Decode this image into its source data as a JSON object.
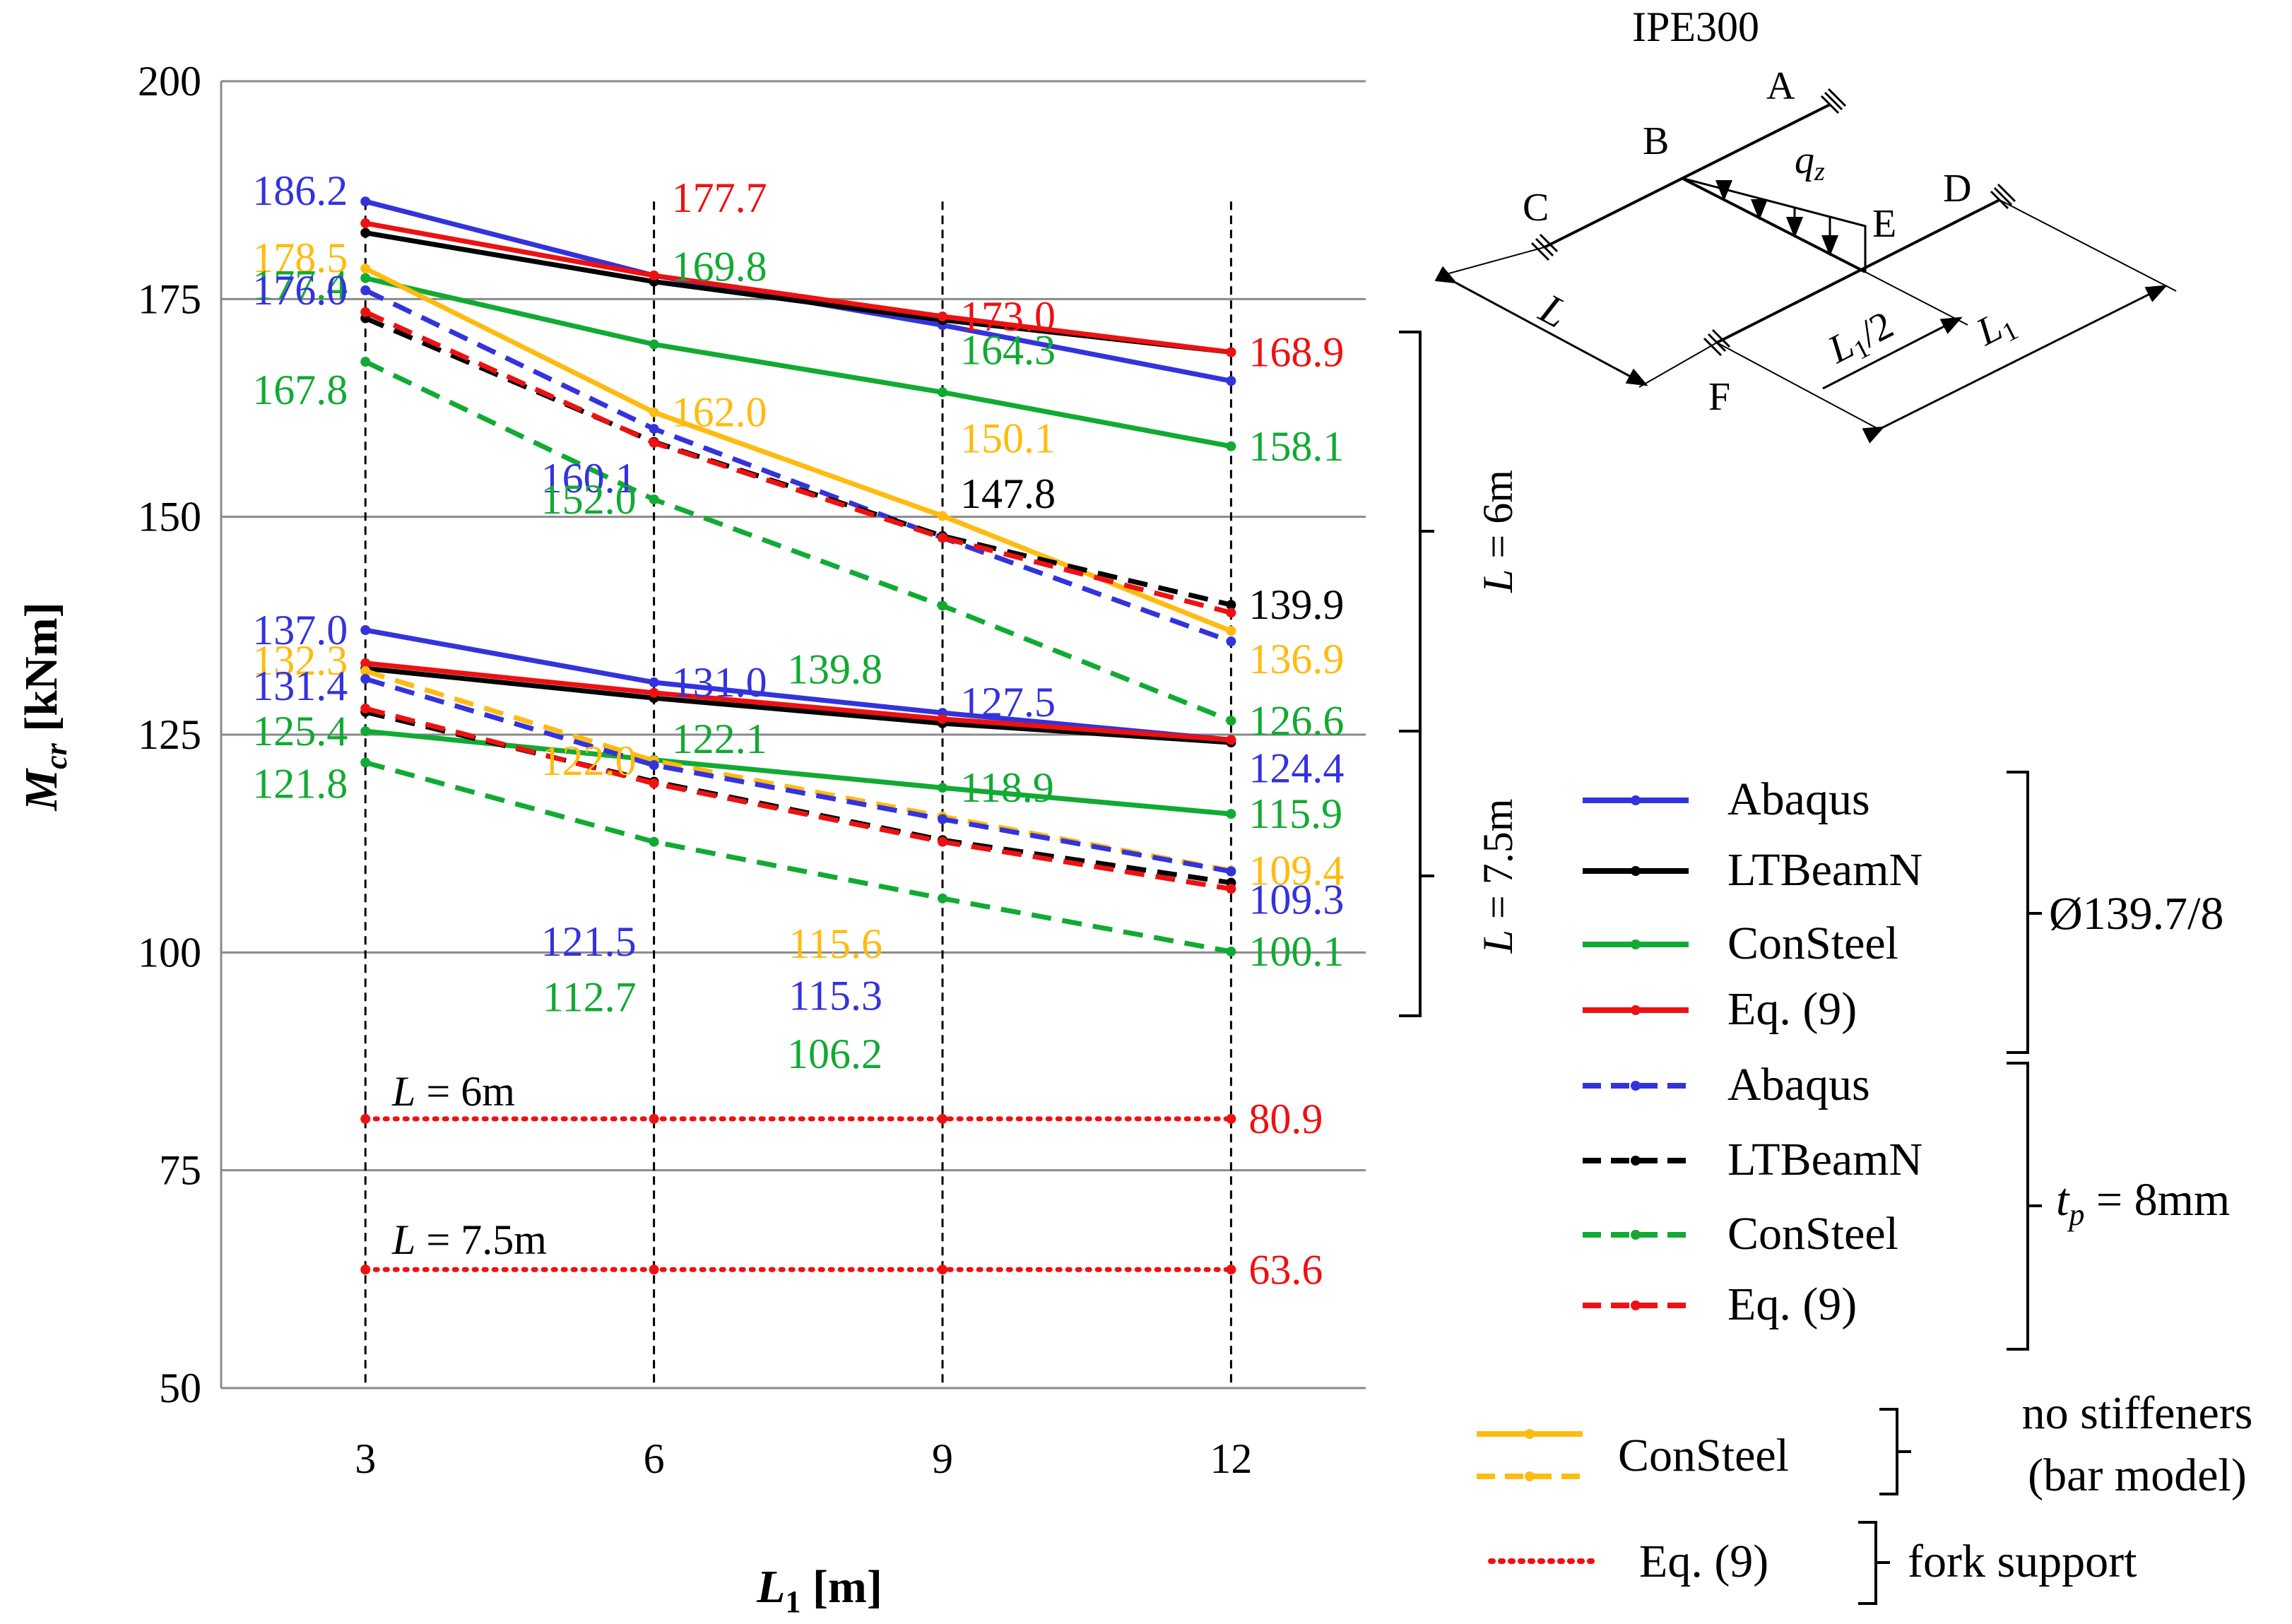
{
  "chart_data": {
    "type": "line",
    "title": "",
    "xlabel": "L",
    "xlabel_sub": "1",
    "xlabel_unit": " [m]",
    "ylabel": "M",
    "ylabel_sub": "cr",
    "ylabel_unit": " [kNm]",
    "x": [
      3,
      6,
      9,
      12
    ],
    "xticks": [
      "3",
      "6",
      "9",
      "12"
    ],
    "ylim": [
      50,
      200
    ],
    "yticks": [
      50,
      75,
      100,
      125,
      150,
      175,
      200
    ],
    "grid": "horizontal",
    "colors": {
      "abaqus": "#3333dd",
      "ltbeam": "#000000",
      "consteel": "#11aa33",
      "eq9": "#ee1111",
      "consteel_bar": "#ffbb11"
    },
    "series": [
      {
        "name": "Abaqus (Ø139.7/8, L = 6m)",
        "color": "#3333dd",
        "style": "solid",
        "values": [
          186.2,
          177.7,
          172.0,
          165.6
        ]
      },
      {
        "name": "LTBeamN (Ø139.7/8, L = 6m)",
        "color": "#000000",
        "style": "solid",
        "values": [
          182.6,
          177.0,
          172.6,
          168.9
        ]
      },
      {
        "name": "ConSteel (Ø139.7/8, L = 6m)",
        "color": "#11aa33",
        "style": "solid",
        "values": [
          177.4,
          169.8,
          164.3,
          158.1
        ]
      },
      {
        "name": "Eq. (9) (Ø139.7/8, L = 6m)",
        "color": "#ee1111",
        "style": "solid",
        "values": [
          183.7,
          177.7,
          173.0,
          168.9
        ]
      },
      {
        "name": "ConSteel bar model (L = 6m)",
        "color": "#ffbb11",
        "style": "solid",
        "values": [
          178.5,
          162.0,
          150.1,
          136.9
        ]
      },
      {
        "name": "Abaqus (tp = 8mm, L = 6m)",
        "color": "#3333dd",
        "style": "dashed",
        "values": [
          176.0,
          160.1,
          147.6,
          135.7
        ]
      },
      {
        "name": "LTBeamN (tp = 8mm, L = 6m)",
        "color": "#000000",
        "style": "dashed",
        "values": [
          172.8,
          158.6,
          147.8,
          139.9
        ]
      },
      {
        "name": "ConSteel (tp = 8mm, L = 6m)",
        "color": "#11aa33",
        "style": "dashed",
        "values": [
          167.8,
          152.0,
          139.8,
          126.6
        ]
      },
      {
        "name": "Eq. (9) (tp = 8mm, L = 6m)",
        "color": "#ee1111",
        "style": "dashed",
        "values": [
          173.5,
          158.5,
          147.6,
          139.0
        ]
      },
      {
        "name": "Abaqus (Ø139.7/8, L = 7.5m)",
        "color": "#3333dd",
        "style": "solid",
        "values": [
          137.0,
          131.0,
          127.5,
          124.4
        ]
      },
      {
        "name": "LTBeamN (Ø139.7/8, L = 7.5m)",
        "color": "#000000",
        "style": "solid",
        "values": [
          132.6,
          129.2,
          126.3,
          124.1
        ]
      },
      {
        "name": "ConSteel (Ø139.7/8, L = 7.5m)",
        "color": "#11aa33",
        "style": "solid",
        "values": [
          125.4,
          122.1,
          118.9,
          115.9
        ]
      },
      {
        "name": "Eq. (9) (Ø139.7/8, L = 7.5m)",
        "color": "#ee1111",
        "style": "solid",
        "values": [
          133.2,
          129.8,
          126.8,
          124.4
        ]
      },
      {
        "name": "ConSteel bar model (L = 7.5m)",
        "color": "#ffbb11",
        "style": "dashed",
        "values": [
          132.3,
          122.0,
          115.6,
          109.4
        ]
      },
      {
        "name": "Abaqus (tp = 8mm, L = 7.5m)",
        "color": "#3333dd",
        "style": "dashed",
        "values": [
          131.4,
          121.5,
          115.3,
          109.3
        ]
      },
      {
        "name": "LTBeamN (tp = 8mm, L = 7.5m)",
        "color": "#000000",
        "style": "dashed",
        "values": [
          127.6,
          119.6,
          112.9,
          108.0
        ]
      },
      {
        "name": "ConSteel (tp = 8mm, L = 7.5m)",
        "color": "#11aa33",
        "style": "dashed",
        "values": [
          121.8,
          112.7,
          106.2,
          100.1
        ]
      },
      {
        "name": "Eq. (9) (tp = 8mm, L = 7.5m)",
        "color": "#ee1111",
        "style": "dashed",
        "values": [
          128.0,
          119.4,
          112.7,
          107.3
        ]
      },
      {
        "name": "Eq. (9) fork support (L = 6m)",
        "color": "#ee1111",
        "style": "dotted",
        "values": [
          80.9,
          80.9,
          80.9,
          80.9
        ]
      },
      {
        "name": "Eq. (9) fork support (L = 7.5m)",
        "color": "#ee1111",
        "style": "dotted",
        "values": [
          63.6,
          63.6,
          63.6,
          63.6
        ]
      }
    ],
    "data_labels": [
      {
        "text": "186.2",
        "x": 3,
        "y": 186.2,
        "color": "#3333dd",
        "anchor": "left-of"
      },
      {
        "text": "178.5",
        "x": 3,
        "y": 178.5,
        "color": "#ffbb11",
        "anchor": "left-of"
      },
      {
        "text": "177.4",
        "x": 3,
        "y": 177.4,
        "color": "#11aa33",
        "anchor": "left-of"
      },
      {
        "text": "176.0",
        "x": 3,
        "y": 176.0,
        "color": "#3333dd",
        "anchor": "left-of"
      },
      {
        "text": "167.8",
        "x": 3,
        "y": 167.8,
        "color": "#11aa33",
        "anchor": "left-of"
      },
      {
        "text": "137.0",
        "x": 3,
        "y": 137.0,
        "color": "#3333dd",
        "anchor": "left-of"
      },
      {
        "text": "132.3",
        "x": 3,
        "y": 132.3,
        "color": "#ffbb11",
        "anchor": "left-of"
      },
      {
        "text": "131.4",
        "x": 3,
        "y": 131.4,
        "color": "#3333dd",
        "anchor": "left-of"
      },
      {
        "text": "125.4",
        "x": 3,
        "y": 125.4,
        "color": "#11aa33",
        "anchor": "left-of"
      },
      {
        "text": "121.8",
        "x": 3,
        "y": 121.8,
        "color": "#11aa33",
        "anchor": "left-of"
      },
      {
        "text": "177.7",
        "x": 6,
        "y": 177.7,
        "color": "#ee1111",
        "anchor": "right-of"
      },
      {
        "text": "169.8",
        "x": 6,
        "y": 169.8,
        "color": "#11aa33",
        "anchor": "right-of"
      },
      {
        "text": "162.0",
        "x": 6,
        "y": 162.0,
        "color": "#ffbb11",
        "anchor": "right-of"
      },
      {
        "text": "160.1",
        "x": 6,
        "y": 160.1,
        "color": "#3333dd",
        "anchor": "left-of"
      },
      {
        "text": "152.0",
        "x": 6,
        "y": 152.0,
        "color": "#11aa33",
        "anchor": "left-of"
      },
      {
        "text": "131.0",
        "x": 6,
        "y": 131.0,
        "color": "#3333dd",
        "anchor": "right-of"
      },
      {
        "text": "122.1",
        "x": 6,
        "y": 122.1,
        "color": "#11aa33",
        "anchor": "right-of"
      },
      {
        "text": "122.0",
        "x": 6,
        "y": 122.0,
        "color": "#ffbb11",
        "anchor": "left-of"
      },
      {
        "text": "121.5",
        "x": 6,
        "y": 121.5,
        "color": "#3333dd",
        "anchor": "left-of"
      },
      {
        "text": "112.7",
        "x": 6,
        "y": 112.7,
        "color": "#11aa33",
        "anchor": "left-of"
      },
      {
        "text": "173.0",
        "x": 9,
        "y": 173.0,
        "color": "#ee1111",
        "anchor": "right-of"
      },
      {
        "text": "164.3",
        "x": 9,
        "y": 164.3,
        "color": "#11aa33",
        "anchor": "right-of"
      },
      {
        "text": "150.1",
        "x": 9,
        "y": 150.1,
        "color": "#ffbb11",
        "anchor": "right-of"
      },
      {
        "text": "147.8",
        "x": 9,
        "y": 147.8,
        "color": "#000000",
        "anchor": "right-of"
      },
      {
        "text": "139.8",
        "x": 9,
        "y": 139.8,
        "color": "#11aa33",
        "anchor": "left-of"
      },
      {
        "text": "127.5",
        "x": 9,
        "y": 127.5,
        "color": "#3333dd",
        "anchor": "right-of"
      },
      {
        "text": "118.9",
        "x": 9,
        "y": 118.9,
        "color": "#11aa33",
        "anchor": "right-of"
      },
      {
        "text": "115.6",
        "x": 9,
        "y": 115.6,
        "color": "#ffbb11",
        "anchor": "left-of"
      },
      {
        "text": "115.3",
        "x": 9,
        "y": 115.3,
        "color": "#3333dd",
        "anchor": "left-of"
      },
      {
        "text": "106.2",
        "x": 9,
        "y": 106.2,
        "color": "#11aa33",
        "anchor": "left-of"
      },
      {
        "text": "168.9",
        "x": 12,
        "y": 168.9,
        "color": "#ee1111",
        "anchor": "right-of"
      },
      {
        "text": "158.1",
        "x": 12,
        "y": 158.1,
        "color": "#11aa33",
        "anchor": "right-of"
      },
      {
        "text": "139.9",
        "x": 12,
        "y": 139.9,
        "color": "#000000",
        "anchor": "right-of"
      },
      {
        "text": "136.9",
        "x": 12,
        "y": 136.9,
        "color": "#ffbb11",
        "anchor": "right-of"
      },
      {
        "text": "126.6",
        "x": 12,
        "y": 126.6,
        "color": "#11aa33",
        "anchor": "right-of"
      },
      {
        "text": "124.4",
        "x": 12,
        "y": 124.4,
        "color": "#3333dd",
        "anchor": "right-of"
      },
      {
        "text": "115.9",
        "x": 12,
        "y": 115.9,
        "color": "#11aa33",
        "anchor": "right-of"
      },
      {
        "text": "109.4",
        "x": 12,
        "y": 109.4,
        "color": "#ffbb11",
        "anchor": "right-of"
      },
      {
        "text": "109.3",
        "x": 12,
        "y": 109.3,
        "color": "#3333dd",
        "anchor": "right-of"
      },
      {
        "text": "100.1",
        "x": 12,
        "y": 100.1,
        "color": "#11aa33",
        "anchor": "right-of"
      },
      {
        "text": "80.9",
        "x": 12,
        "y": 80.9,
        "color": "#ee1111",
        "anchor": "right-of"
      },
      {
        "text": "63.6",
        "x": 12,
        "y": 63.6,
        "color": "#ee1111",
        "anchor": "right-of"
      }
    ],
    "annotations": {
      "fork_6m": {
        "italic": "L",
        "text": " = 6m"
      },
      "fork_75m": {
        "italic": "L",
        "text": " = 7.5m"
      },
      "bracket_6m": {
        "italic": "L",
        "text": " = 6m"
      },
      "bracket_75m": {
        "italic": "L",
        "text": " = 7.5m"
      }
    },
    "legend": {
      "solid_items": [
        "Abaqus",
        "LTBeamN",
        "ConSteel",
        "Eq. (9)"
      ],
      "solid_group_label": "Ø139.7/8",
      "dashed_items": [
        "Abaqus",
        "LTBeamN",
        "ConSteel",
        "Eq. (9)"
      ],
      "dashed_group_italic": "t",
      "dashed_group_sub": "p",
      "dashed_group_rest": " = 8mm",
      "consteel_bar_label": "ConSteel",
      "consteel_bar_note_1": "no stiffeners",
      "consteel_bar_note_2": "(bar model)",
      "fork_label": "Eq. (9)",
      "fork_note": "fork support"
    },
    "diagram": {
      "title": "IPE300",
      "points": [
        "A",
        "B",
        "C",
        "D",
        "E",
        "F"
      ],
      "load_label": "q",
      "load_sub": "z",
      "dim_L": "L",
      "dim_half": "L",
      "dim_half_sub": "1",
      "dim_half_rest": "/2",
      "dim_L1": "L",
      "dim_L1_sub": "1"
    }
  }
}
